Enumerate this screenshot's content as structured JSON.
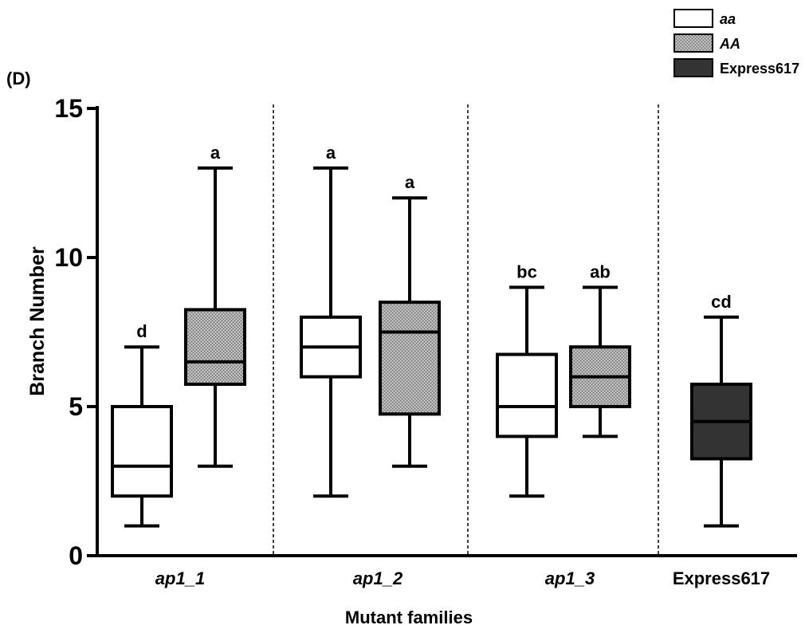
{
  "chart_data": {
    "type": "box",
    "panel_label": "(D)",
    "xlabel": "Mutant families",
    "ylabel": "Branch Number",
    "ylim": [
      0,
      15
    ],
    "yticks": [
      0,
      5,
      10,
      15
    ],
    "groups": [
      {
        "label": "ap1_1",
        "italic": true
      },
      {
        "label": "ap1_2",
        "italic": true
      },
      {
        "label": "ap1_3",
        "italic": true
      },
      {
        "label": "Express617",
        "italic": false
      }
    ],
    "legend": [
      {
        "name": "aa",
        "italic": true,
        "fill": "#ffffff"
      },
      {
        "name": "AA",
        "italic": true,
        "fill": "#b0b0b0"
      },
      {
        "name": "Express617",
        "italic": false,
        "fill": "#333333"
      }
    ],
    "boxes": [
      {
        "group": "ap1_1",
        "series": "aa",
        "min": 1,
        "q1": 2,
        "median": 3,
        "q3": 5,
        "max": 7,
        "letter": "d"
      },
      {
        "group": "ap1_1",
        "series": "AA",
        "min": 3,
        "q1": 5.75,
        "median": 6.5,
        "q3": 8.25,
        "max": 13,
        "letter": "a"
      },
      {
        "group": "ap1_2",
        "series": "aa",
        "min": 2,
        "q1": 6,
        "median": 7,
        "q3": 8,
        "max": 13,
        "letter": "a"
      },
      {
        "group": "ap1_2",
        "series": "AA",
        "min": 3,
        "q1": 4.75,
        "median": 7.5,
        "q3": 8.5,
        "max": 12,
        "letter": "a"
      },
      {
        "group": "ap1_3",
        "series": "aa",
        "min": 2,
        "q1": 4,
        "median": 5,
        "q3": 6.75,
        "max": 9,
        "letter": "bc"
      },
      {
        "group": "ap1_3",
        "series": "AA",
        "min": 4,
        "q1": 5,
        "median": 6,
        "q3": 7,
        "max": 9,
        "letter": "ab"
      },
      {
        "group": "Express617",
        "series": "Express617",
        "min": 1,
        "q1": 3.25,
        "median": 4.5,
        "q3": 5.75,
        "max": 8,
        "letter": "cd"
      }
    ]
  }
}
